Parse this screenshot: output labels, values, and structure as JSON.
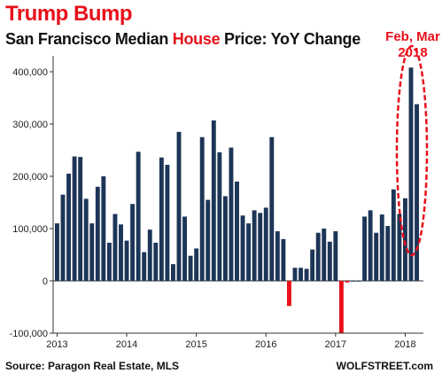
{
  "header": {
    "headline": "Trump Bump",
    "subtitle_pre": "San Francisco Median ",
    "subtitle_highlight": "House",
    "subtitle_post": " Price: YoY Change"
  },
  "annotation": {
    "line1": "Feb, Mar",
    "line2": "2018"
  },
  "footer": {
    "source": "Source: Paragon Real Estate, MLS",
    "brand": "WOLFSTREET.com"
  },
  "colors": {
    "positive": "#1d3557",
    "negative": "#e8101a",
    "accent": "#e8101a"
  },
  "chart_data": {
    "type": "bar",
    "title": "San Francisco Median House Price: YoY Change",
    "x_tick_labels": [
      "2013",
      "2014",
      "2015",
      "2016",
      "2017",
      "2018"
    ],
    "y_tick_labels": [
      "-100,000",
      "0",
      "100,000",
      "200,000",
      "300,000",
      "400,000"
    ],
    "ylim": [
      -100000,
      420000
    ],
    "grid": false,
    "start": "2013-01",
    "end": "2018-03",
    "values": [
      110000,
      165000,
      205000,
      238000,
      237000,
      157000,
      110000,
      180000,
      200000,
      73000,
      128000,
      108000,
      77000,
      147000,
      247000,
      55000,
      98000,
      73000,
      236000,
      222000,
      32000,
      285000,
      123000,
      48000,
      62000,
      275000,
      155000,
      307000,
      246000,
      162000,
      255000,
      190000,
      125000,
      110000,
      135000,
      130000,
      140000,
      275000,
      95000,
      80000,
      -48000,
      25000,
      25000,
      23000,
      60000,
      92000,
      100000,
      75000,
      95000,
      -100000,
      -3000,
      0,
      0,
      123000,
      135000,
      92000,
      127000,
      105000,
      175000,
      128000,
      158000,
      408000,
      338000
    ]
  }
}
